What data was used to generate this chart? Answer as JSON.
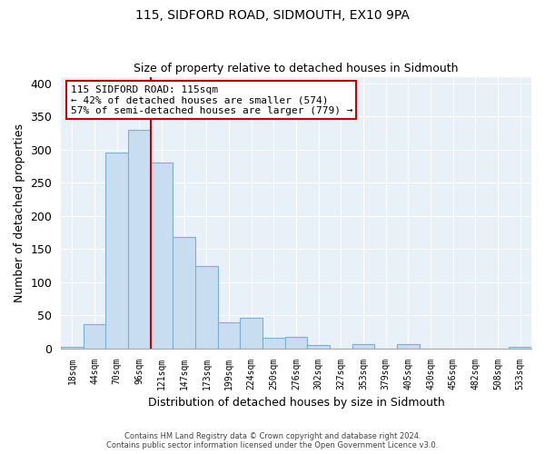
{
  "title1": "115, SIDFORD ROAD, SIDMOUTH, EX10 9PA",
  "title2": "Size of property relative to detached houses in Sidmouth",
  "xlabel": "Distribution of detached houses by size in Sidmouth",
  "ylabel": "Number of detached properties",
  "bar_labels": [
    "18sqm",
    "44sqm",
    "70sqm",
    "96sqm",
    "121sqm",
    "147sqm",
    "173sqm",
    "199sqm",
    "224sqm",
    "250sqm",
    "276sqm",
    "302sqm",
    "327sqm",
    "353sqm",
    "379sqm",
    "405sqm",
    "430sqm",
    "456sqm",
    "482sqm",
    "508sqm",
    "533sqm"
  ],
  "bar_values": [
    2,
    37,
    295,
    330,
    280,
    168,
    124,
    40,
    46,
    16,
    17,
    5,
    0,
    7,
    0,
    6,
    0,
    0,
    0,
    0,
    2
  ],
  "bar_color": "#c8ddf0",
  "bar_edge_color": "#7bafd4",
  "property_line_color": "#cc0000",
  "ylim": [
    0,
    410
  ],
  "yticks": [
    0,
    50,
    100,
    150,
    200,
    250,
    300,
    350,
    400
  ],
  "annotation_title": "115 SIDFORD ROAD: 115sqm",
  "annotation_line1": "← 42% of detached houses are smaller (574)",
  "annotation_line2": "57% of semi-detached houses are larger (779) →",
  "annotation_box_color": "#ffffff",
  "annotation_box_edge": "#cc0000",
  "footer1": "Contains HM Land Registry data © Crown copyright and database right 2024.",
  "footer2": "Contains public sector information licensed under the Open Government Licence v3.0.",
  "background_color": "#ffffff",
  "plot_bg_color": "#e8f0f8",
  "grid_color": "#ffffff"
}
